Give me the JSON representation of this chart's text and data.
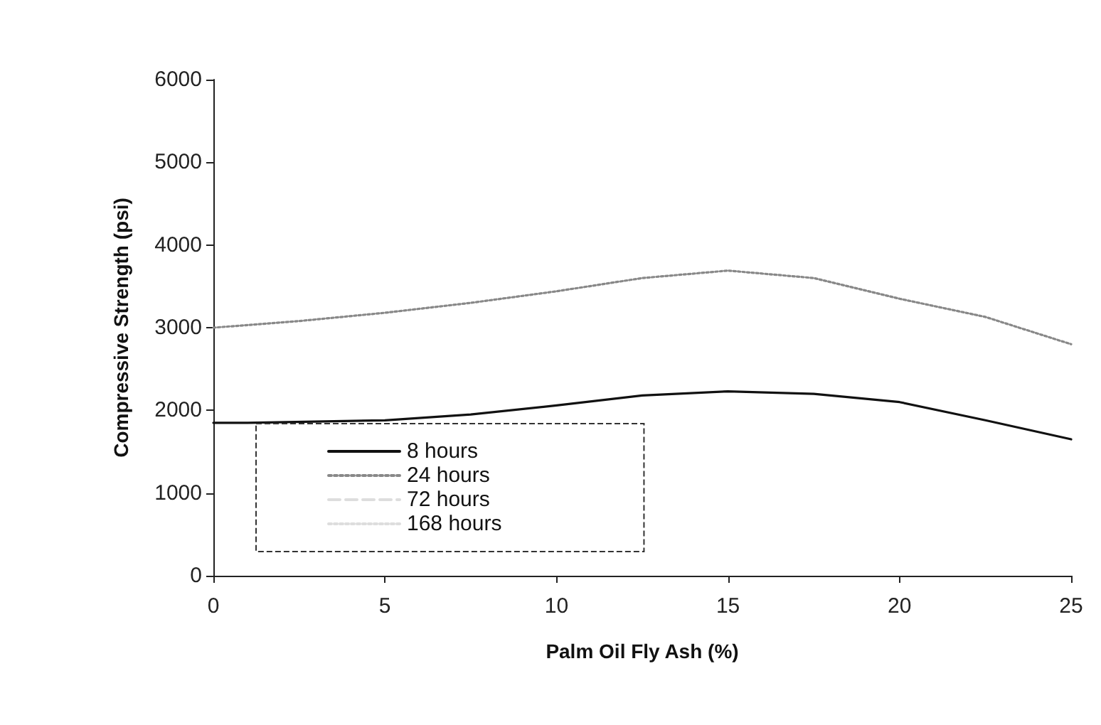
{
  "chart_data": {
    "type": "line",
    "xlabel": "Palm Oil Fly Ash (%)",
    "ylabel": "Compressive Strength (psi)",
    "xlim": [
      0,
      25
    ],
    "xticks": [
      0,
      5,
      10,
      15,
      20,
      25
    ],
    "ylim": [
      0,
      6000
    ],
    "yticks": [
      0,
      1000,
      2000,
      3000,
      4000,
      5000,
      6000
    ],
    "grid": false,
    "legend": "bottom left",
    "marker": "none",
    "series": [
      {
        "name": "8 hours",
        "color": "#111111",
        "line_style": "solid",
        "x": [
          0,
          1,
          5,
          7.5,
          10,
          12.5,
          15,
          17.5,
          20,
          22.5,
          25
        ],
        "values": [
          1850,
          1850,
          1880,
          1950,
          2060,
          2180,
          2230,
          2200,
          2100,
          1880,
          1650
        ]
      },
      {
        "name": "24 hours",
        "color": "#888888",
        "line_style": "dotted",
        "x": [
          0,
          2.5,
          5,
          7.5,
          10,
          12.5,
          15,
          17.5,
          20,
          22.5,
          25
        ],
        "values": [
          3000,
          3080,
          3180,
          3300,
          3440,
          3600,
          3690,
          3600,
          3350,
          3130,
          2800
        ]
      },
      {
        "name": "72 hours",
        "color": "#dddddd",
        "line_style": "dashed"
      },
      {
        "name": "168 hours",
        "color": "#dddddd",
        "line_style": "dotted"
      }
    ]
  }
}
